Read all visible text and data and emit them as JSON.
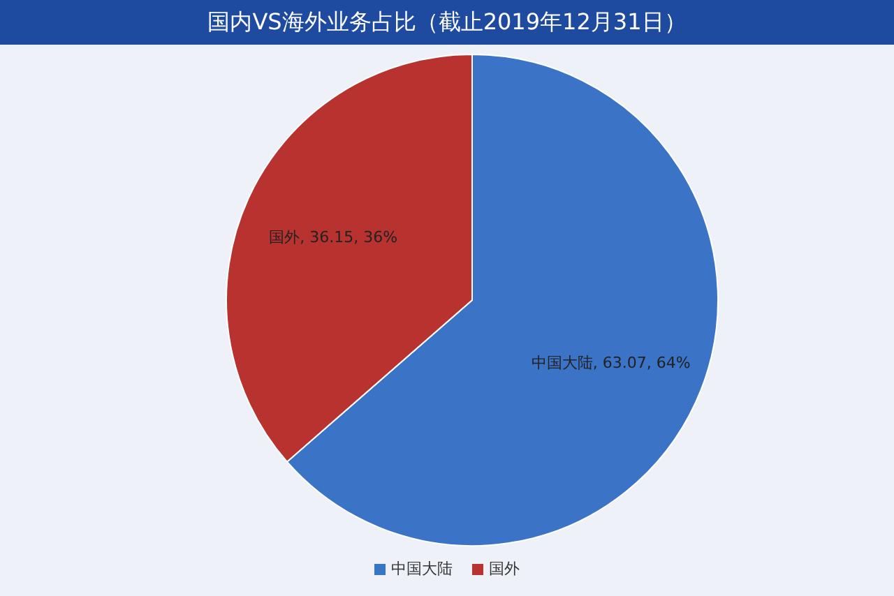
{
  "chart_data": {
    "type": "pie",
    "title": "国内VS海外业务占比（截止2019年12月31日）",
    "categories": [
      "中国大陆",
      "国外"
    ],
    "values": [
      63.07,
      36.15
    ],
    "colors": [
      "#3b74c6",
      "#b8322f"
    ],
    "value_labels": [
      "中国大陆, 63.07, 64%",
      "国外, 36.15, 36%"
    ],
    "legend": "bottom"
  }
}
